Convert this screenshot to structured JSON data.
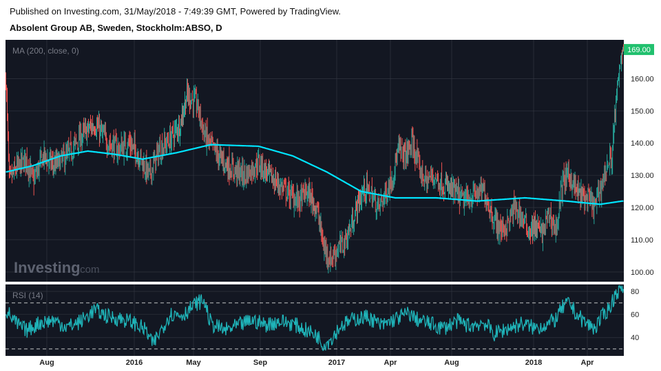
{
  "header": {
    "published": "Published on Investing.com, 31/May/2018 - 7:49:39 GMT, Powered by TradingView.",
    "title": "Absolent Group AB, Sweden, Stockholm:ABSO, D"
  },
  "watermark": {
    "text_main": "Investing",
    "text_suffix": ".com"
  },
  "colors": {
    "background": "#131722",
    "grid": "#363a45",
    "up": "#26a69a",
    "down": "#ef5350",
    "ma": "#00e5ff",
    "rsi": "#1fb3b8",
    "price_tag": "#21c06e"
  },
  "chart_data": [
    {
      "type": "candlestick",
      "indicator_label": "MA (200, close, 0)",
      "x_tick_labels": [
        "Aug",
        "2016",
        "May",
        "Sep",
        "2017",
        "Apr",
        "Aug",
        "2018",
        "Apr"
      ],
      "y_ticks": [
        100,
        110,
        120,
        130,
        140,
        150,
        160
      ],
      "y_tick_labels": [
        "100.00",
        "110.00",
        "120.00",
        "130.00",
        "140.00",
        "150.00",
        "160.00"
      ],
      "ylim": [
        97,
        172
      ],
      "last_price": 169.0,
      "last_price_label": "169.00",
      "grid": true,
      "close_anchors": [
        [
          0,
          160
        ],
        [
          5,
          128
        ],
        [
          15,
          132
        ],
        [
          30,
          135
        ],
        [
          40,
          128
        ],
        [
          55,
          136
        ],
        [
          70,
          133
        ],
        [
          90,
          136
        ],
        [
          110,
          142
        ],
        [
          130,
          146
        ],
        [
          150,
          140
        ],
        [
          165,
          138
        ],
        [
          180,
          140
        ],
        [
          195,
          136
        ],
        [
          210,
          130
        ],
        [
          225,
          138
        ],
        [
          240,
          141
        ],
        [
          255,
          146
        ],
        [
          265,
          155
        ],
        [
          280,
          152
        ],
        [
          290,
          143
        ],
        [
          300,
          139
        ],
        [
          315,
          135
        ],
        [
          330,
          132
        ],
        [
          350,
          130
        ],
        [
          370,
          134
        ],
        [
          385,
          130
        ],
        [
          400,
          127
        ],
        [
          415,
          124
        ],
        [
          430,
          122
        ],
        [
          440,
          125
        ],
        [
          455,
          120
        ],
        [
          465,
          108
        ],
        [
          475,
          104
        ],
        [
          485,
          107
        ],
        [
          495,
          109
        ],
        [
          505,
          114
        ],
        [
          515,
          121
        ],
        [
          525,
          126
        ],
        [
          535,
          124
        ],
        [
          545,
          120
        ],
        [
          555,
          124
        ],
        [
          565,
          129
        ],
        [
          575,
          138
        ],
        [
          585,
          136
        ],
        [
          595,
          140
        ],
        [
          605,
          132
        ],
        [
          615,
          128
        ],
        [
          625,
          130
        ],
        [
          640,
          127
        ],
        [
          655,
          125
        ],
        [
          670,
          122
        ],
        [
          685,
          124
        ],
        [
          700,
          125
        ],
        [
          715,
          116
        ],
        [
          725,
          113
        ],
        [
          735,
          115
        ],
        [
          745,
          120
        ],
        [
          755,
          117
        ],
        [
          765,
          113
        ],
        [
          775,
          114
        ],
        [
          785,
          112
        ],
        [
          795,
          118
        ],
        [
          805,
          113
        ],
        [
          815,
          128
        ],
        [
          825,
          130
        ],
        [
          835,
          125
        ],
        [
          845,
          123
        ],
        [
          855,
          122
        ],
        [
          862,
          120
        ],
        [
          870,
          126
        ],
        [
          880,
          133
        ],
        [
          887,
          136
        ],
        [
          892,
          150
        ],
        [
          897,
          160
        ],
        [
          902,
          169
        ]
      ],
      "ma_anchors": [
        [
          0,
          131
        ],
        [
          40,
          133
        ],
        [
          80,
          136
        ],
        [
          120,
          137.5
        ],
        [
          160,
          136.5
        ],
        [
          200,
          135
        ],
        [
          250,
          137
        ],
        [
          300,
          139.5
        ],
        [
          370,
          139
        ],
        [
          420,
          136
        ],
        [
          470,
          131
        ],
        [
          520,
          125
        ],
        [
          570,
          123
        ],
        [
          630,
          123
        ],
        [
          690,
          122
        ],
        [
          760,
          123
        ],
        [
          820,
          122
        ],
        [
          870,
          121
        ],
        [
          902,
          122
        ]
      ]
    },
    {
      "type": "line",
      "indicator_label": "RSI (14)",
      "y_ticks": [
        40,
        60,
        80
      ],
      "y_tick_labels": [
        "40",
        "60",
        "80"
      ],
      "ylim": [
        24,
        86
      ],
      "bands": [
        30,
        70
      ],
      "last_value": 82,
      "rsi_anchors": [
        [
          0,
          64
        ],
        [
          15,
          52
        ],
        [
          30,
          46
        ],
        [
          50,
          53
        ],
        [
          70,
          55
        ],
        [
          90,
          49
        ],
        [
          110,
          54
        ],
        [
          130,
          64
        ],
        [
          150,
          58
        ],
        [
          170,
          56
        ],
        [
          190,
          52
        ],
        [
          205,
          46
        ],
        [
          215,
          34
        ],
        [
          225,
          44
        ],
        [
          240,
          60
        ],
        [
          260,
          60
        ],
        [
          280,
          70
        ],
        [
          290,
          72
        ],
        [
          300,
          52
        ],
        [
          320,
          46
        ],
        [
          340,
          50
        ],
        [
          360,
          55
        ],
        [
          380,
          51
        ],
        [
          400,
          54
        ],
        [
          420,
          52
        ],
        [
          440,
          46
        ],
        [
          455,
          42
        ],
        [
          465,
          34
        ],
        [
          475,
          38
        ],
        [
          490,
          50
        ],
        [
          510,
          56
        ],
        [
          530,
          58
        ],
        [
          550,
          50
        ],
        [
          570,
          56
        ],
        [
          590,
          61
        ],
        [
          600,
          56
        ],
        [
          620,
          52
        ],
        [
          640,
          48
        ],
        [
          660,
          54
        ],
        [
          680,
          50
        ],
        [
          700,
          53
        ],
        [
          715,
          43
        ],
        [
          735,
          48
        ],
        [
          755,
          52
        ],
        [
          775,
          48
        ],
        [
          795,
          52
        ],
        [
          805,
          56
        ],
        [
          815,
          66
        ],
        [
          825,
          70
        ],
        [
          835,
          60
        ],
        [
          850,
          52
        ],
        [
          862,
          48
        ],
        [
          875,
          60
        ],
        [
          885,
          67
        ],
        [
          893,
          79
        ],
        [
          900,
          82
        ]
      ]
    }
  ]
}
